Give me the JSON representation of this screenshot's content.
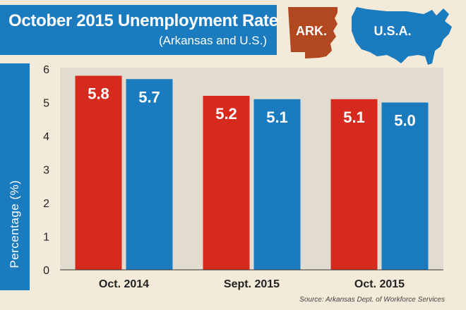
{
  "header": {
    "title": "October 2015 Unemployment Rate",
    "subtitle": "(Arkansas and U.S.)"
  },
  "map_labels": {
    "arkansas": "ARK.",
    "usa": "U.S.A."
  },
  "source": "Source: Arkansas Dept. of Workforce Services",
  "colors": {
    "arkansas": "#d62a1f",
    "us": "#1b7bbf",
    "arkansas_map": "#b2481f",
    "plot_bg": "#e2dcd0",
    "page_bg": "#f4ead9"
  },
  "chart_data": {
    "type": "bar",
    "categories": [
      "Oct. 2014",
      "Sept. 2015",
      "Oct. 2015"
    ],
    "series": [
      {
        "values": [
          5.8,
          5.2,
          5.1
        ],
        "labels": [
          "5.8",
          "5.2",
          "5.1"
        ]
      },
      {
        "values": [
          5.7,
          5.1,
          5.0
        ],
        "labels": [
          "5.7",
          "5.1",
          "5.0"
        ]
      }
    ],
    "ylabel": "Percentage (%)",
    "xlabel": "",
    "ylim": [
      0,
      6
    ],
    "yticks": [
      0,
      1,
      2,
      3,
      4,
      5,
      6
    ],
    "grid": false,
    "legend": "maps labeled ARK. and U.S.A. at top-right"
  }
}
